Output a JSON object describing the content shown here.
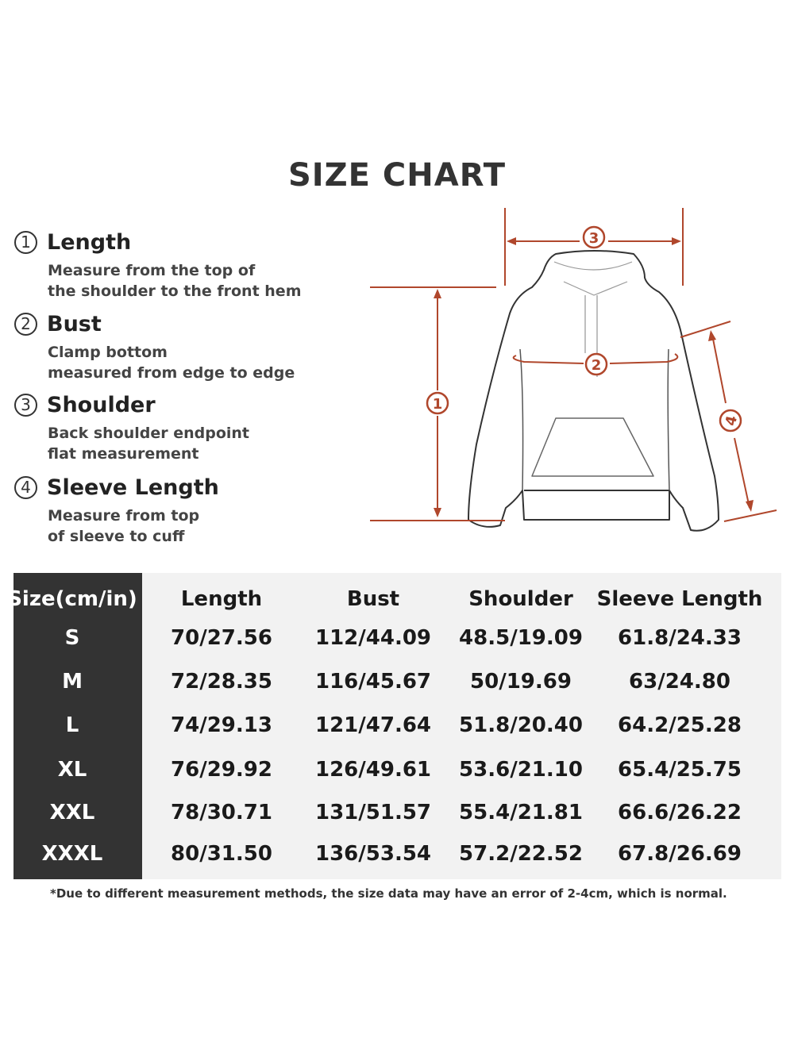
{
  "title": "SIZE CHART",
  "guides": [
    {
      "num": "1",
      "name": "Length",
      "lines": [
        "Measure from the top of",
        "the shoulder to the front hem"
      ]
    },
    {
      "num": "2",
      "name": "Bust",
      "lines": [
        "Clamp bottom",
        "measured from edge to edge"
      ]
    },
    {
      "num": "3",
      "name": "Shoulder",
      "lines": [
        "Back shoulder endpoint",
        "flat measurement"
      ]
    },
    {
      "num": "4",
      "name": "Sleeve Length",
      "lines": [
        "Measure from top",
        "of sleeve to cuff"
      ]
    }
  ],
  "diagram": {
    "markers": [
      "1",
      "2",
      "3",
      "4"
    ],
    "accent_color": "#b0472c"
  },
  "table": {
    "headers": [
      "Size(cm/in)",
      "Length",
      "Bust",
      "Shoulder",
      "Sleeve Length"
    ],
    "rows": [
      [
        "S",
        "70/27.56",
        "112/44.09",
        "48.5/19.09",
        "61.8/24.33"
      ],
      [
        "M",
        "72/28.35",
        "116/45.67",
        "50/19.69",
        "63/24.80"
      ],
      [
        "L",
        "74/29.13",
        "121/47.64",
        "51.8/20.40",
        "64.2/25.28"
      ],
      [
        "XL",
        "76/29.92",
        "126/49.61",
        "53.6/21.10",
        "65.4/25.75"
      ],
      [
        "XXL",
        "78/30.71",
        "131/51.57",
        "55.4/21.81",
        "66.6/26.22"
      ],
      [
        "XXXL",
        "80/31.50",
        "136/53.54",
        "57.2/22.52",
        "67.8/26.69"
      ]
    ]
  },
  "note": "*Due to different measurement methods, the size data may have an error of 2-4cm, which is normal."
}
